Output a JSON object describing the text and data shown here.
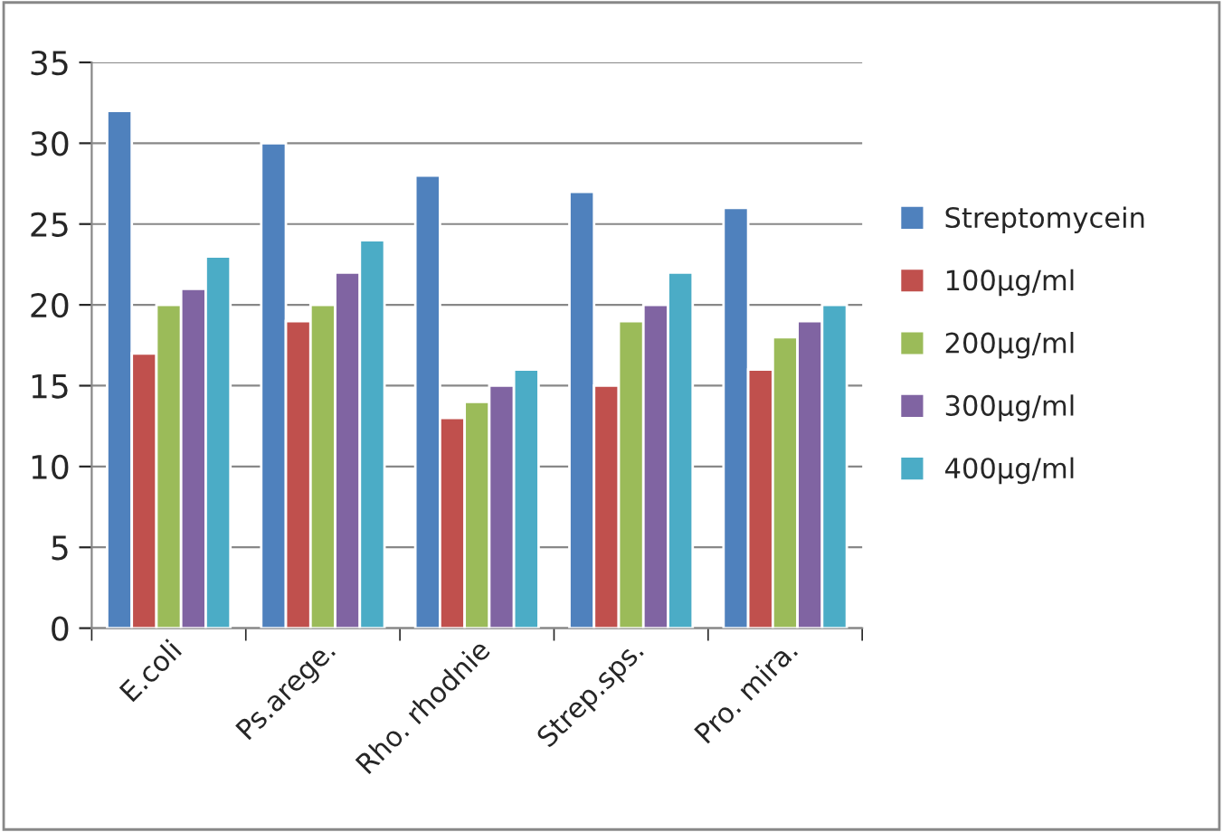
{
  "chart_data": {
    "type": "bar",
    "categories": [
      "E.coli",
      "Ps.arege.",
      "Rho. rhodnie",
      "Strep.sps.",
      "Pro. mira."
    ],
    "series": [
      {
        "name": "Streptomycein",
        "color": "#4f81bd",
        "values": [
          32,
          30,
          28,
          27,
          26
        ]
      },
      {
        "name": "100µg/ml",
        "color": "#c0504d",
        "values": [
          17,
          19,
          13,
          15,
          16
        ]
      },
      {
        "name": "200µg/ml",
        "color": "#9bbb59",
        "values": [
          20,
          20,
          14,
          19,
          18
        ]
      },
      {
        "name": "300µg/ml",
        "color": "#8064a2",
        "values": [
          21,
          22,
          15,
          20,
          19
        ]
      },
      {
        "name": "400µg/ml",
        "color": "#4bacc6",
        "values": [
          23,
          24,
          16,
          22,
          20
        ]
      }
    ],
    "ylim": [
      0,
      35
    ],
    "yticks": [
      0,
      5,
      10,
      15,
      20,
      25,
      30,
      35
    ],
    "grid": "y",
    "legend": "right"
  }
}
